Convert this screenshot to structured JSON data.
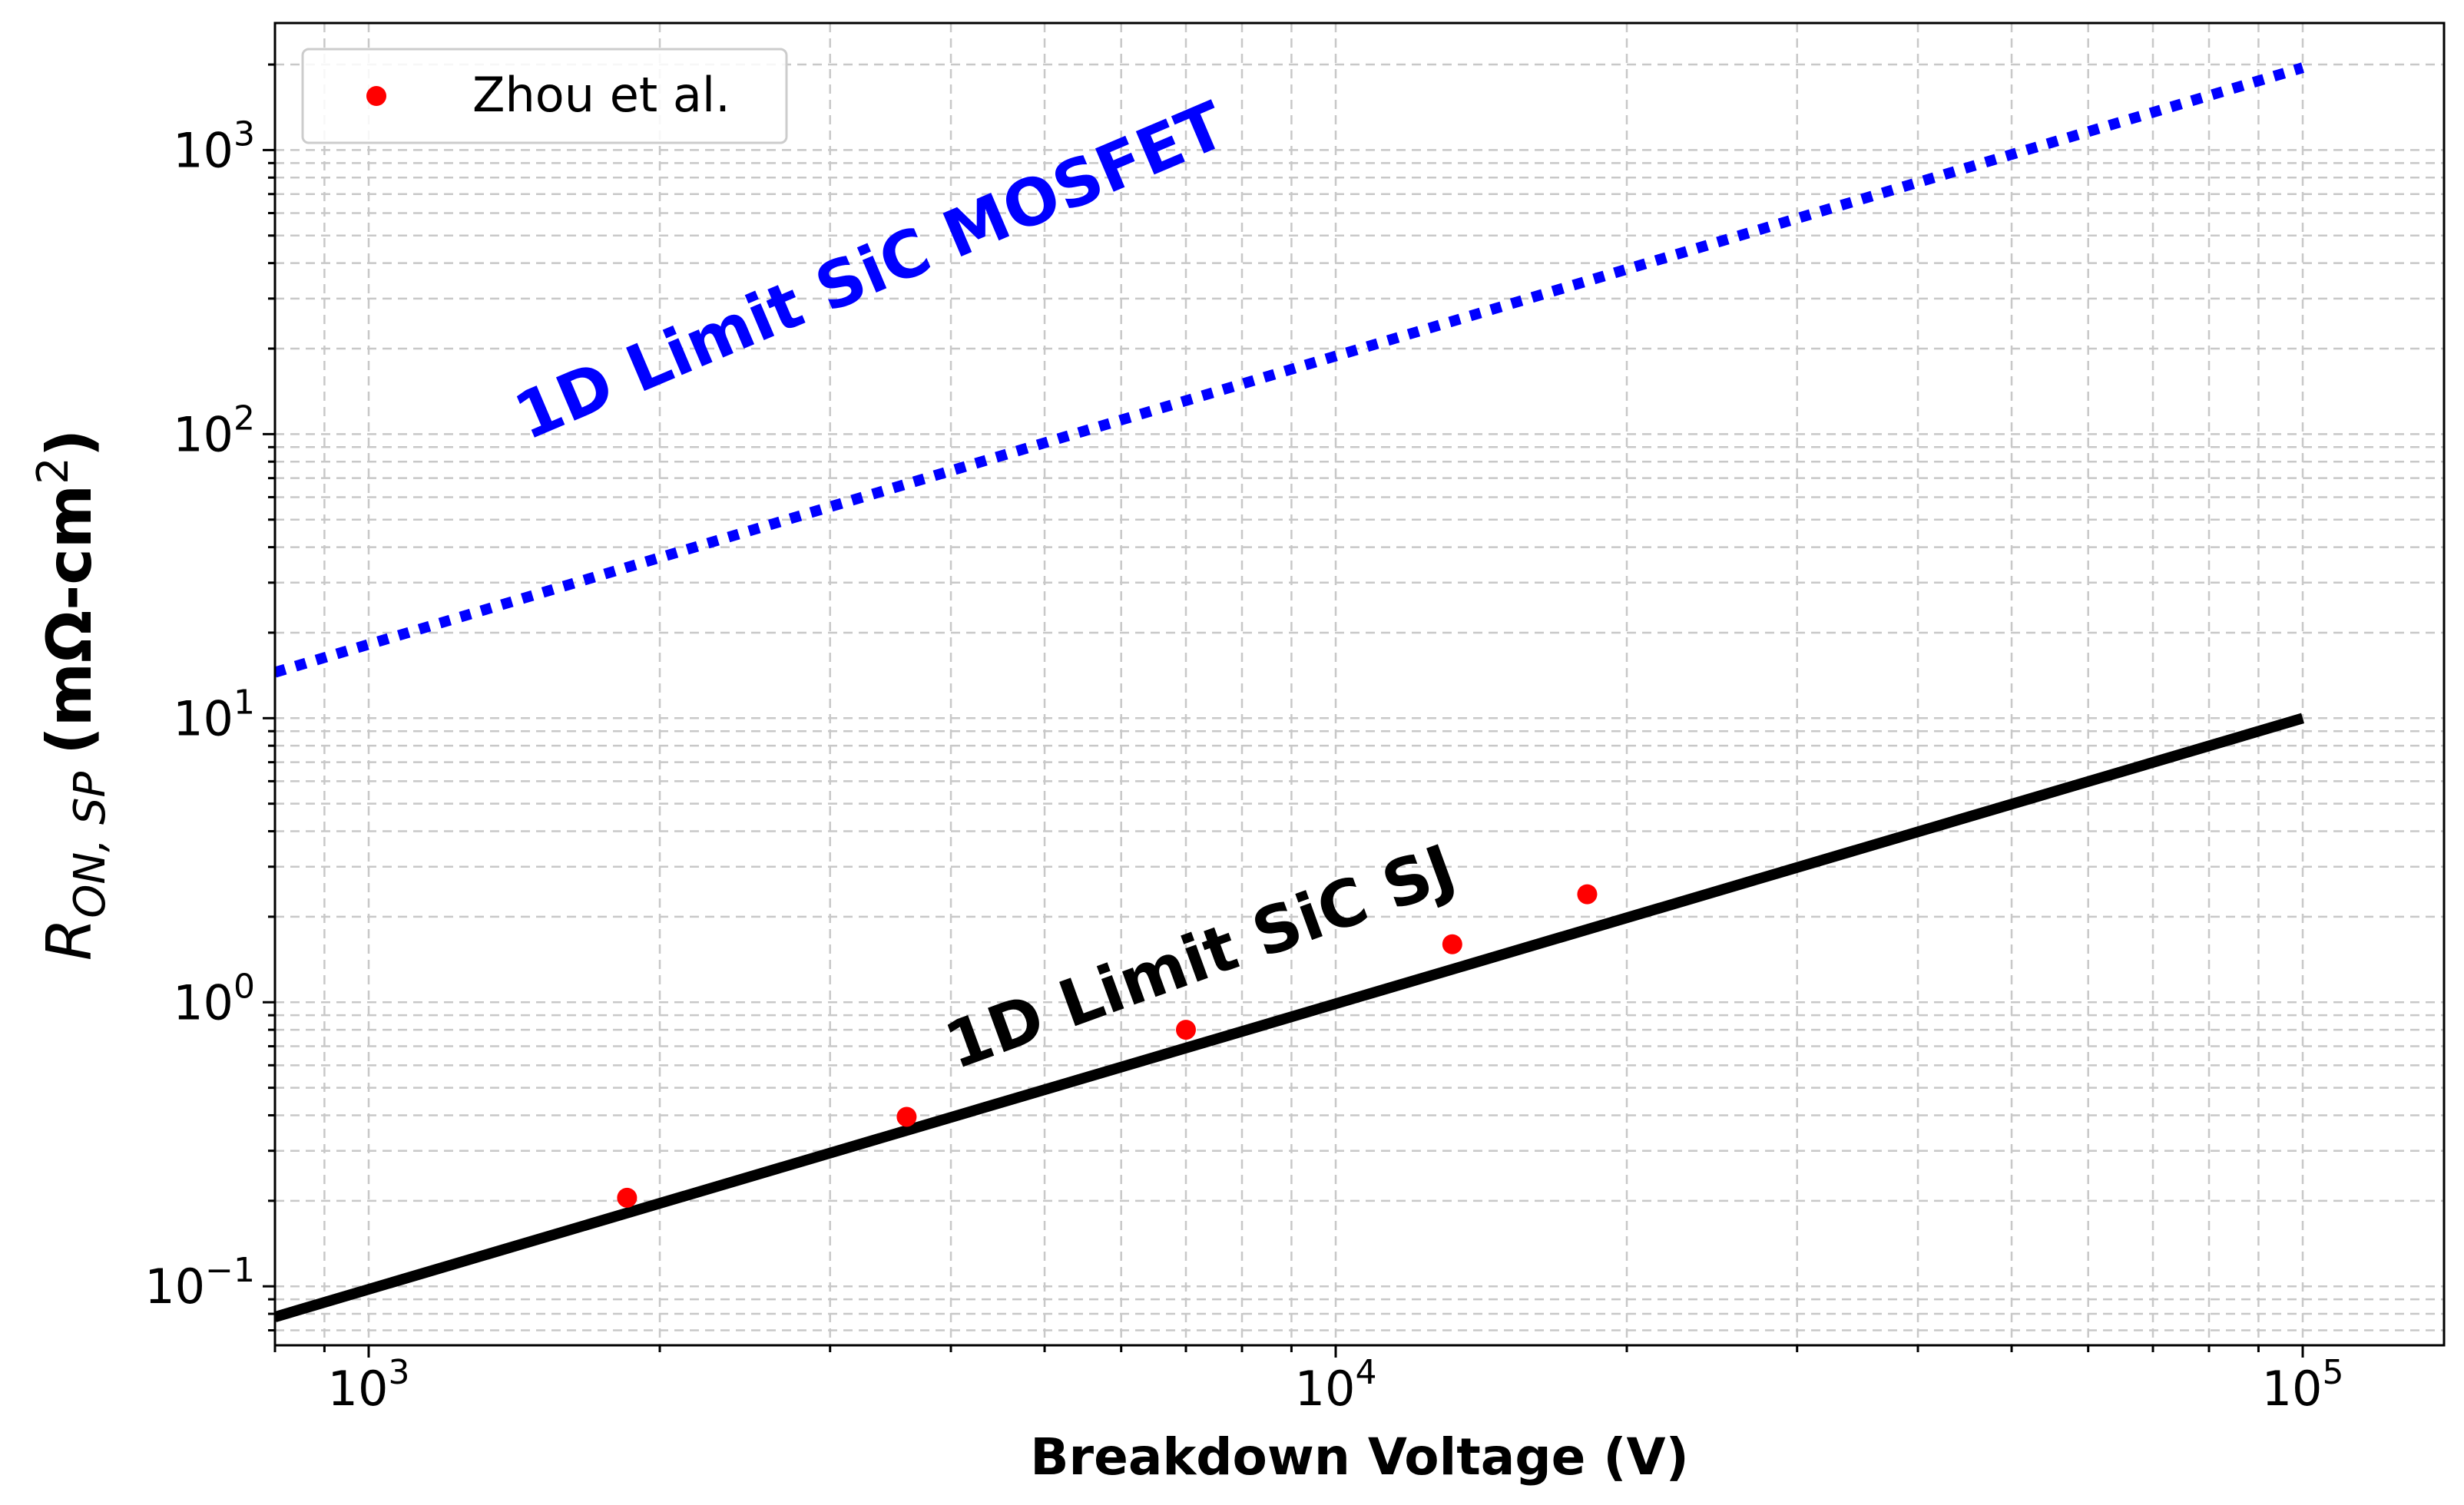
{
  "chart_data": {
    "type": "line",
    "title": "",
    "xlabel": "Breakdown Voltage (V)",
    "ylabel": {
      "base": "R",
      "subscript": "ON, SP",
      "unit_prefix": "(mΩ-cm",
      "unit_exp": "2",
      "unit_suffix": ")"
    },
    "xscale": "log",
    "yscale": "log",
    "xlim": [
      800,
      140000
    ],
    "ylim": [
      0.062,
      2800
    ],
    "grid": true,
    "legend_placement": "top-left",
    "x_ticks": [
      {
        "value": 1000,
        "base": "10",
        "exp": "3"
      },
      {
        "value": 10000,
        "base": "10",
        "exp": "4"
      },
      {
        "value": 100000,
        "base": "10",
        "exp": "5"
      }
    ],
    "y_ticks": [
      {
        "value": 0.1,
        "base": "10",
        "exp": "−1"
      },
      {
        "value": 1,
        "base": "10",
        "exp": "0"
      },
      {
        "value": 10,
        "base": "10",
        "exp": "1"
      },
      {
        "value": 100,
        "base": "10",
        "exp": "2"
      },
      {
        "value": 1000,
        "base": "10",
        "exp": "3"
      }
    ],
    "series": [
      {
        "name": "Zhou et al.",
        "kind": "scatter",
        "color": "#ff0000",
        "x": [
          1850,
          3600,
          7000,
          13200,
          18200
        ],
        "y": [
          0.205,
          0.395,
          0.8,
          1.6,
          2.4
        ]
      },
      {
        "kind": "line",
        "style": "solid",
        "color": "#000000",
        "x": [
          800,
          100000
        ],
        "y": [
          0.078,
          10
        ]
      },
      {
        "kind": "line",
        "style": "dotted",
        "color": "#0000ff",
        "x": [
          800,
          100000
        ],
        "y": [
          14.5,
          1950
        ]
      }
    ],
    "annotations": [
      {
        "text": "1D Limit SiC MOSFET",
        "color": "#0000ff",
        "x": 1460,
        "y": 95,
        "angle": -23
      },
      {
        "text": "1D Limit SiC SJ",
        "color": "#000000",
        "x": 4050,
        "y": 0.58,
        "angle": -20
      }
    ]
  }
}
